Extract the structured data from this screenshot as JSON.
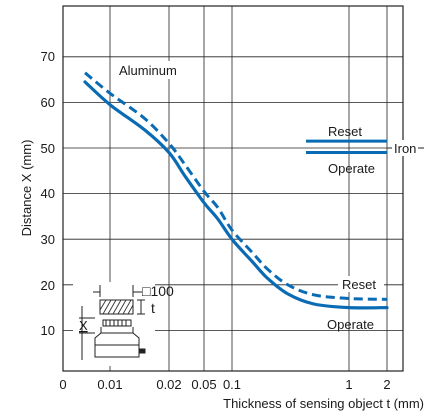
{
  "chart_data": {
    "type": "line",
    "xlabel": "Thickness of sensing object t (mm)",
    "ylabel": "Distance X (mm)",
    "x_ticks": [
      "0",
      "0.01",
      "0.02",
      "0.05",
      "0.1",
      "1",
      "2"
    ],
    "y_ticks": [
      "10",
      "20",
      "30",
      "40",
      "50",
      "60",
      "70"
    ],
    "ylim": [
      0,
      80
    ],
    "grid": true,
    "accent_color": "#0a6bb5",
    "series": [
      {
        "name": "Operate",
        "material": "Aluminum",
        "style": "solid",
        "points": [
          [
            0.006,
            64.5
          ],
          [
            0.01,
            59.5
          ],
          [
            0.015,
            54
          ],
          [
            0.02,
            49
          ],
          [
            0.03,
            44
          ],
          [
            0.05,
            38
          ],
          [
            0.07,
            34.5
          ],
          [
            0.1,
            30
          ],
          [
            0.15,
            25
          ],
          [
            0.2,
            21.5
          ],
          [
            0.3,
            18
          ],
          [
            0.5,
            15.8
          ],
          [
            1,
            15
          ],
          [
            2,
            15
          ]
        ]
      },
      {
        "name": "Reset",
        "material": "Aluminum",
        "style": "dashed",
        "points": [
          [
            0.006,
            66.5
          ],
          [
            0.01,
            62
          ],
          [
            0.015,
            56.5
          ],
          [
            0.02,
            51
          ],
          [
            0.03,
            46.5
          ],
          [
            0.05,
            40.5
          ],
          [
            0.07,
            37
          ],
          [
            0.1,
            32
          ],
          [
            0.15,
            27
          ],
          [
            0.2,
            23.5
          ],
          [
            0.3,
            20
          ],
          [
            0.5,
            17.8
          ],
          [
            1,
            17
          ],
          [
            2,
            16.8
          ]
        ]
      }
    ],
    "iron": {
      "label": "Iron",
      "reset": 51.5,
      "operate": 49
    },
    "annotations": {
      "aluminum": "Aluminum",
      "iron": "Iron",
      "reset_upper": "Reset",
      "operate_upper": "Operate",
      "reset_lower": "Reset",
      "operate_lower": "Operate"
    },
    "inset": {
      "size_label": "□100",
      "t_label": "t",
      "x_label": "X"
    }
  }
}
